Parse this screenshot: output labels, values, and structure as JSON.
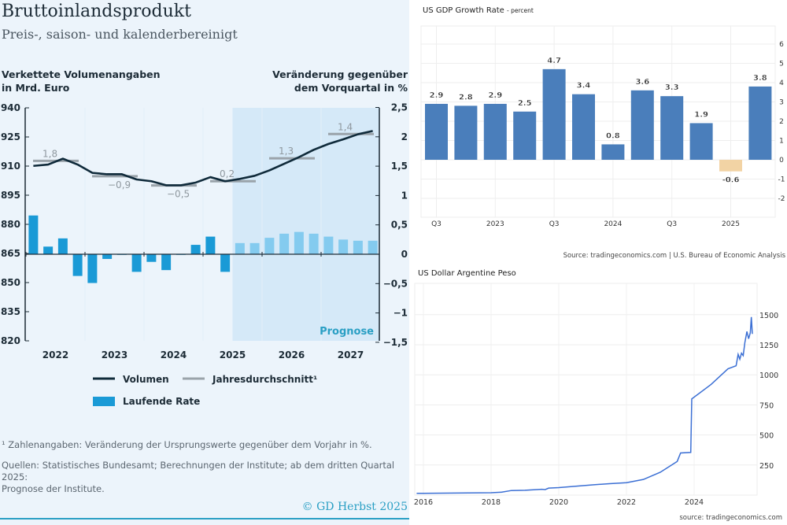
{
  "left": {
    "title": "Bruttoinlandsprodukt",
    "subtitle": "Preis-, saison- und kalenderbereinigt",
    "left_axis_title": [
      "Verkettete Volumenangaben",
      "in Mrd. Euro"
    ],
    "right_axis_title": [
      "Veränderung gegenüber",
      "dem Vorquartal in %"
    ],
    "footnote": "¹ Zahlenangaben: Veränderung der Ursprungswerte gegenüber dem Vorjahr in %.",
    "sources": [
      "Quellen: Statistisches Bundesamt; Berechnungen der Institute; ab dem dritten Quartal 2025:",
      "Prognose der Institute."
    ],
    "copyright": "© GD Herbst 2025"
  },
  "chart_data": [
    {
      "type": "bar+line",
      "title": "Bruttoinlandsprodukt",
      "years": [
        "2022",
        "2023",
        "2024",
        "2025",
        "2026",
        "2027"
      ],
      "quarters_per_year": 4,
      "ylabel_left": "Verkettete Volumenangaben in Mrd. Euro",
      "ylabel_right": "Veränderung gegenüber dem Vorquartal in %",
      "ylim_left": [
        820,
        940
      ],
      "yticks_left": [
        "940",
        "925",
        "910",
        "895",
        "880",
        "865",
        "850",
        "835",
        "820"
      ],
      "ylim_right": [
        -1.5,
        2.5
      ],
      "yticks_right": [
        "2,5",
        "2",
        "1,5",
        "1",
        "0,5",
        "0",
        "−0,5",
        "−1",
        "−1,5"
      ],
      "forecast_label": "Prognose",
      "forecast_start_index": 14,
      "legend": {
        "volumen": "Volumen",
        "avg": "Jahresdurchschnitt¹",
        "rate": "Laufende Rate"
      },
      "series": [
        {
          "name": "Volumen",
          "values": [
            910.1,
            910.8,
            913.8,
            910.8,
            906.5,
            905.8,
            905.8,
            903.1,
            902.2,
            900.1,
            900.1,
            901.5,
            904.3,
            902.2,
            903.4,
            905.0,
            907.8,
            911.2,
            914.6,
            918.4,
            921.4,
            923.8,
            926.4,
            928.1
          ]
        },
        {
          "name": "Laufende Rate",
          "values": [
            0.66,
            0.13,
            0.27,
            -0.37,
            -0.49,
            -0.08,
            0.0,
            -0.3,
            -0.13,
            -0.27,
            0.0,
            0.16,
            0.3,
            -0.3,
            0.19,
            0.19,
            0.28,
            0.35,
            0.38,
            0.35,
            0.3,
            0.25,
            0.23,
            0.23
          ]
        },
        {
          "name": "Jahresdurchschnitt",
          "levels": [
            912.7,
            904.8,
            900.0,
            902.2,
            914.0,
            926.5
          ],
          "labels": [
            "1,8",
            "−0,9",
            "−0,5",
            "0,2",
            "1,3",
            "1,4"
          ]
        }
      ]
    },
    {
      "type": "bar",
      "title": "US GDP Growth Rate",
      "title_suffix": "- percent",
      "categories": [
        "2022Q3",
        "2022Q4",
        "2023Q1",
        "2023Q2",
        "2023Q3",
        "2023Q4",
        "2024Q1",
        "2024Q2",
        "2024Q3",
        "2024Q4",
        "2025Q1",
        "2025Q2"
      ],
      "values": [
        2.9,
        2.8,
        2.9,
        2.5,
        4.7,
        3.4,
        0.8,
        3.6,
        3.3,
        1.9,
        -0.6,
        3.8
      ],
      "labels": [
        "2.9",
        "2.8",
        "2.9",
        "2.5",
        "4.7",
        "3.4",
        "0.8",
        "3.6",
        "3.3",
        "1.9",
        "-0.6",
        "3.8"
      ],
      "xticks": [
        {
          "index": 0,
          "label": "Q3"
        },
        {
          "index": 2,
          "label": "2023"
        },
        {
          "index": 4,
          "label": "Q3"
        },
        {
          "index": 6,
          "label": "2024"
        },
        {
          "index": 8,
          "label": "Q3"
        },
        {
          "index": 10,
          "label": "2025"
        }
      ],
      "yticks": [
        "6",
        "5",
        "4",
        "3",
        "2",
        "1",
        "0",
        "-1",
        "-2"
      ],
      "ylim": [
        -3,
        7
      ],
      "colors": {
        "positive": "#4a7ebb",
        "negative": "#f2d3a4"
      },
      "source": "Source: tradingeconomics.com | U.S. Bureau of Economic Analysis"
    },
    {
      "type": "line",
      "title": "US Dollar Argentine Peso",
      "x": [
        2015.8,
        2016.0,
        2017.0,
        2018.0,
        2018.3,
        2018.6,
        2019.0,
        2019.5,
        2019.6,
        2019.7,
        2020.0,
        2021.0,
        2021.5,
        2022.0,
        2022.5,
        2023.0,
        2023.5,
        2023.6,
        2023.9,
        2023.93,
        2024.5,
        2025.0,
        2025.24,
        2025.3,
        2025.35,
        2025.4,
        2025.45,
        2025.5,
        2025.56,
        2025.61,
        2025.66,
        2025.69,
        2025.72
      ],
      "y": [
        15,
        15,
        17,
        20,
        24,
        38,
        40,
        48,
        46,
        58,
        62,
        85,
        95,
        103,
        130,
        190,
        280,
        350,
        355,
        800,
        920,
        1050,
        1075,
        1170,
        1130,
        1180,
        1160,
        1270,
        1360,
        1300,
        1350,
        1480,
        1340
      ],
      "xticks": [
        "2016",
        "2018",
        "2020",
        "2022",
        "2024"
      ],
      "yticks": [
        "1500",
        "1250",
        "1000",
        "750",
        "500",
        "250"
      ],
      "ylim": [
        0,
        1750
      ],
      "color": "#3b6fd4",
      "source": "source: tradingeconomics.com"
    }
  ]
}
